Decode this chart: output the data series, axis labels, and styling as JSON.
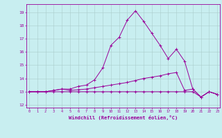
{
  "xlabel": "Windchill (Refroidissement éolien,°C)",
  "x_ticks": [
    0,
    1,
    2,
    3,
    4,
    5,
    6,
    7,
    8,
    9,
    10,
    11,
    12,
    13,
    14,
    15,
    16,
    17,
    18,
    19,
    20,
    21,
    22,
    23
  ],
  "ylim": [
    11.8,
    19.6
  ],
  "xlim": [
    -0.3,
    23.3
  ],
  "yticks": [
    12,
    13,
    14,
    15,
    16,
    17,
    18,
    19
  ],
  "bg_color": "#c8eef0",
  "line_color": "#990099",
  "grid_color": "#aacccc",
  "line1_x": [
    0,
    1,
    2,
    3,
    4,
    5,
    6,
    7,
    8,
    9,
    10,
    11,
    12,
    13,
    14,
    15,
    16,
    17,
    18,
    19,
    20,
    21,
    22,
    23
  ],
  "line1_y": [
    13.0,
    13.0,
    13.0,
    13.0,
    13.0,
    13.0,
    13.0,
    13.0,
    13.0,
    13.0,
    13.0,
    13.0,
    13.0,
    13.0,
    13.0,
    13.0,
    13.0,
    13.0,
    13.0,
    13.0,
    13.0,
    12.6,
    13.0,
    12.8
  ],
  "line2_x": [
    0,
    1,
    2,
    3,
    4,
    5,
    6,
    7,
    8,
    9,
    10,
    11,
    12,
    13,
    14,
    15,
    16,
    17,
    18,
    19,
    20,
    21,
    22,
    23
  ],
  "line2_y": [
    13.0,
    13.0,
    13.0,
    13.1,
    13.2,
    13.1,
    13.15,
    13.2,
    13.3,
    13.4,
    13.5,
    13.6,
    13.7,
    13.85,
    14.0,
    14.1,
    14.2,
    14.35,
    14.45,
    13.1,
    13.2,
    12.6,
    13.0,
    12.8
  ],
  "line3_x": [
    0,
    1,
    2,
    3,
    4,
    5,
    6,
    7,
    8,
    9,
    10,
    11,
    12,
    13,
    14,
    15,
    16,
    17,
    18,
    19,
    20,
    21,
    22,
    23
  ],
  "line3_y": [
    13.0,
    13.0,
    13.0,
    13.1,
    13.2,
    13.2,
    13.4,
    13.5,
    13.9,
    14.8,
    16.5,
    17.1,
    18.4,
    19.1,
    18.3,
    17.4,
    16.5,
    15.5,
    16.2,
    15.3,
    13.2,
    12.6,
    13.0,
    12.8
  ]
}
